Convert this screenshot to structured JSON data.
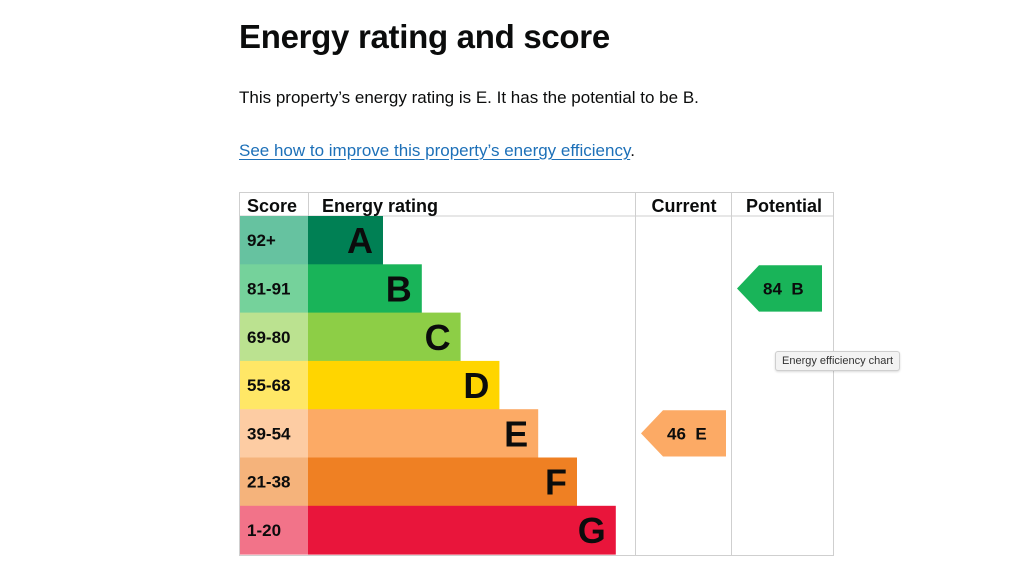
{
  "page": {
    "title": "Energy rating and score",
    "intro": "This property’s energy rating is E. It has the potential to be B.",
    "improve_link": "See how to improve this property’s energy efficiency",
    "improve_suffix": "."
  },
  "chart_data": {
    "type": "bar",
    "headers": {
      "score": "Score",
      "rating": "Energy rating",
      "current": "Current",
      "potential": "Potential"
    },
    "bands": [
      {
        "letter": "A",
        "range": "92+",
        "color": "#008054",
        "light": "#66c2a0"
      },
      {
        "letter": "B",
        "range": "81-91",
        "color": "#19b459",
        "light": "#75d29b"
      },
      {
        "letter": "C",
        "range": "69-80",
        "color": "#8dce46",
        "light": "#bbe290"
      },
      {
        "letter": "D",
        "range": "55-68",
        "color": "#ffd500",
        "light": "#ffe766"
      },
      {
        "letter": "E",
        "range": "39-54",
        "color": "#fcaa65",
        "light": "#fdcca3"
      },
      {
        "letter": "F",
        "range": "21-38",
        "color": "#ef8023",
        "light": "#f5b37b"
      },
      {
        "letter": "G",
        "range": "1-20",
        "color": "#e9153b",
        "light": "#f27389"
      }
    ],
    "current": {
      "score": 46,
      "band": "E",
      "label": "46  E"
    },
    "potential": {
      "score": 84,
      "band": "B",
      "label": "84  B"
    }
  },
  "tooltip": "Energy efficiency chart"
}
